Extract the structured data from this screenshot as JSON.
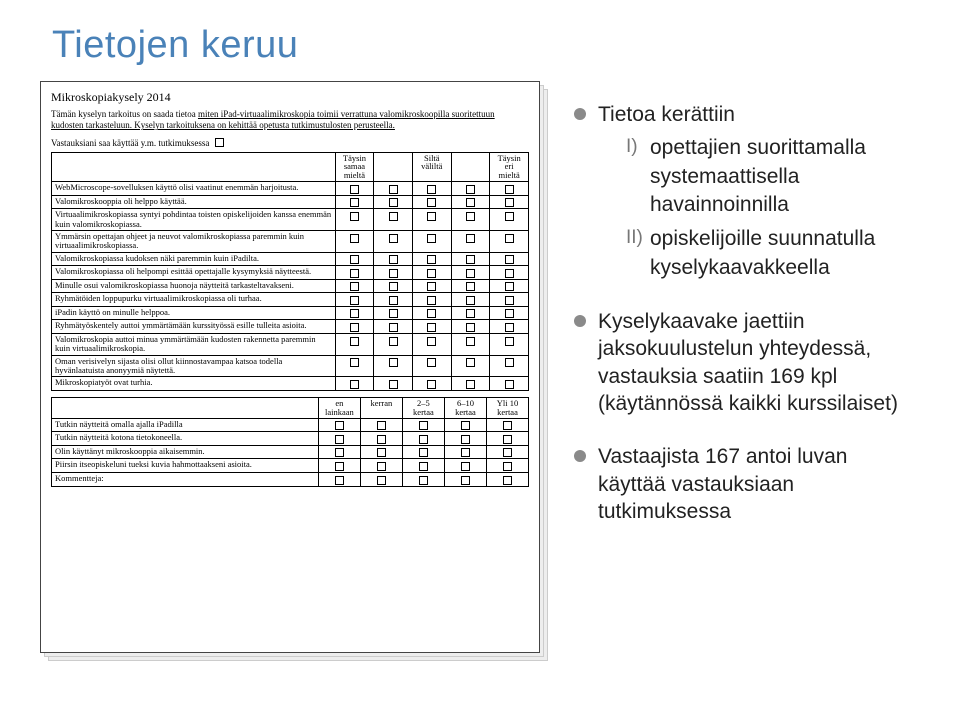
{
  "title": "Tietojen keruu",
  "form": {
    "heading": "Mikroskopiakysely 2014",
    "intro_pre": "Tämän kyselyn tarkoitus on saada tietoa ",
    "intro_u": "miten iPad-virtuaalimikroskopia toimii verrattuna valomikroskoopilla suoritettuun kudosten tarkasteluun. Kyselyn tarkoituksena on kehittää opetusta tutkimustulosten perusteella.",
    "consent": "Vastauksiani saa käyttää y.m. tutkimuksessa",
    "scale_headers": [
      "Täysin samaa mieltä",
      "",
      "Siltä väliltä",
      "",
      "Täysin eri mieltä"
    ],
    "statements": [
      "WebMicroscope-sovelluksen käyttö olisi vaatinut enemmän harjoitusta.",
      "Valomikroskooppia oli helppo käyttää.",
      "Virtuaalimikroskopiassa syntyi pohdintaa toisten opiskelijoiden kanssa enemmän kuin valomikroskopiassa.",
      "Ymmärsin opettajan ohjeet ja neuvot valomikroskopiassa paremmin kuin virtuaalimikroskopiassa.",
      "Valomikroskopiassa kudoksen näki paremmin kuin iPadilta.",
      "Valomikroskopiassa oli helpompi esittää opettajalle kysymyksiä näytteestä.",
      "Minulle osui valomikroskopiassa huonoja näytteitä tarkasteltavakseni.",
      "Ryhmätöiden loppupurku virtuaalimikroskopiassa oli turhaa.",
      "iPadin käyttö on minulle helppoa.",
      "Ryhmätyöskentely auttoi ymmärtämään kurssityössä esille tulleita asioita.",
      "Valomikroskopia auttoi minua ymmärtämään kudosten rakennetta paremmin kuin virtuaalimikroskopia.",
      "Oman verisivelyn sijasta olisi ollut kiinnostavampaa katsoa todella hyvänlaatuista anonyymiä näytettä.",
      "Mikroskopiatyöt ovat turhia."
    ],
    "freq_headers": [
      "en lainkaan",
      "kerran",
      "2–5 kertaa",
      "6–10 kertaa",
      "Yli 10 kertaa"
    ],
    "freq_statements": [
      "Tutkin näytteitä omalla ajalla iPadilla",
      "Tutkin näytteitä kotona tietokoneella.",
      "Olin käyttänyt mikroskooppia aikaisemmin.",
      "Piirsin itseopiskeluni tueksi kuvia hahmottaakseni asioita.",
      "Kommentteja:"
    ]
  },
  "bullets": {
    "b1": "Tietoa kerättiin",
    "b1_sub1_roman": "I)",
    "b1_sub1": "opettajien suorittamalla systemaattisella havainnoinnilla",
    "b1_sub2_roman": "II)",
    "b1_sub2": "opiskelijoille suunnatulla kyselykaavakkeella",
    "b2": "Kyselykaavake jaettiin jaksokuulustelun yhteydessä, vastauksia saatiin 169 kpl (käytännössä kaikki kurssilaiset)",
    "b3": "Vastaajista 167 antoi luvan käyttää vastauksiaan tutkimuksessa"
  }
}
